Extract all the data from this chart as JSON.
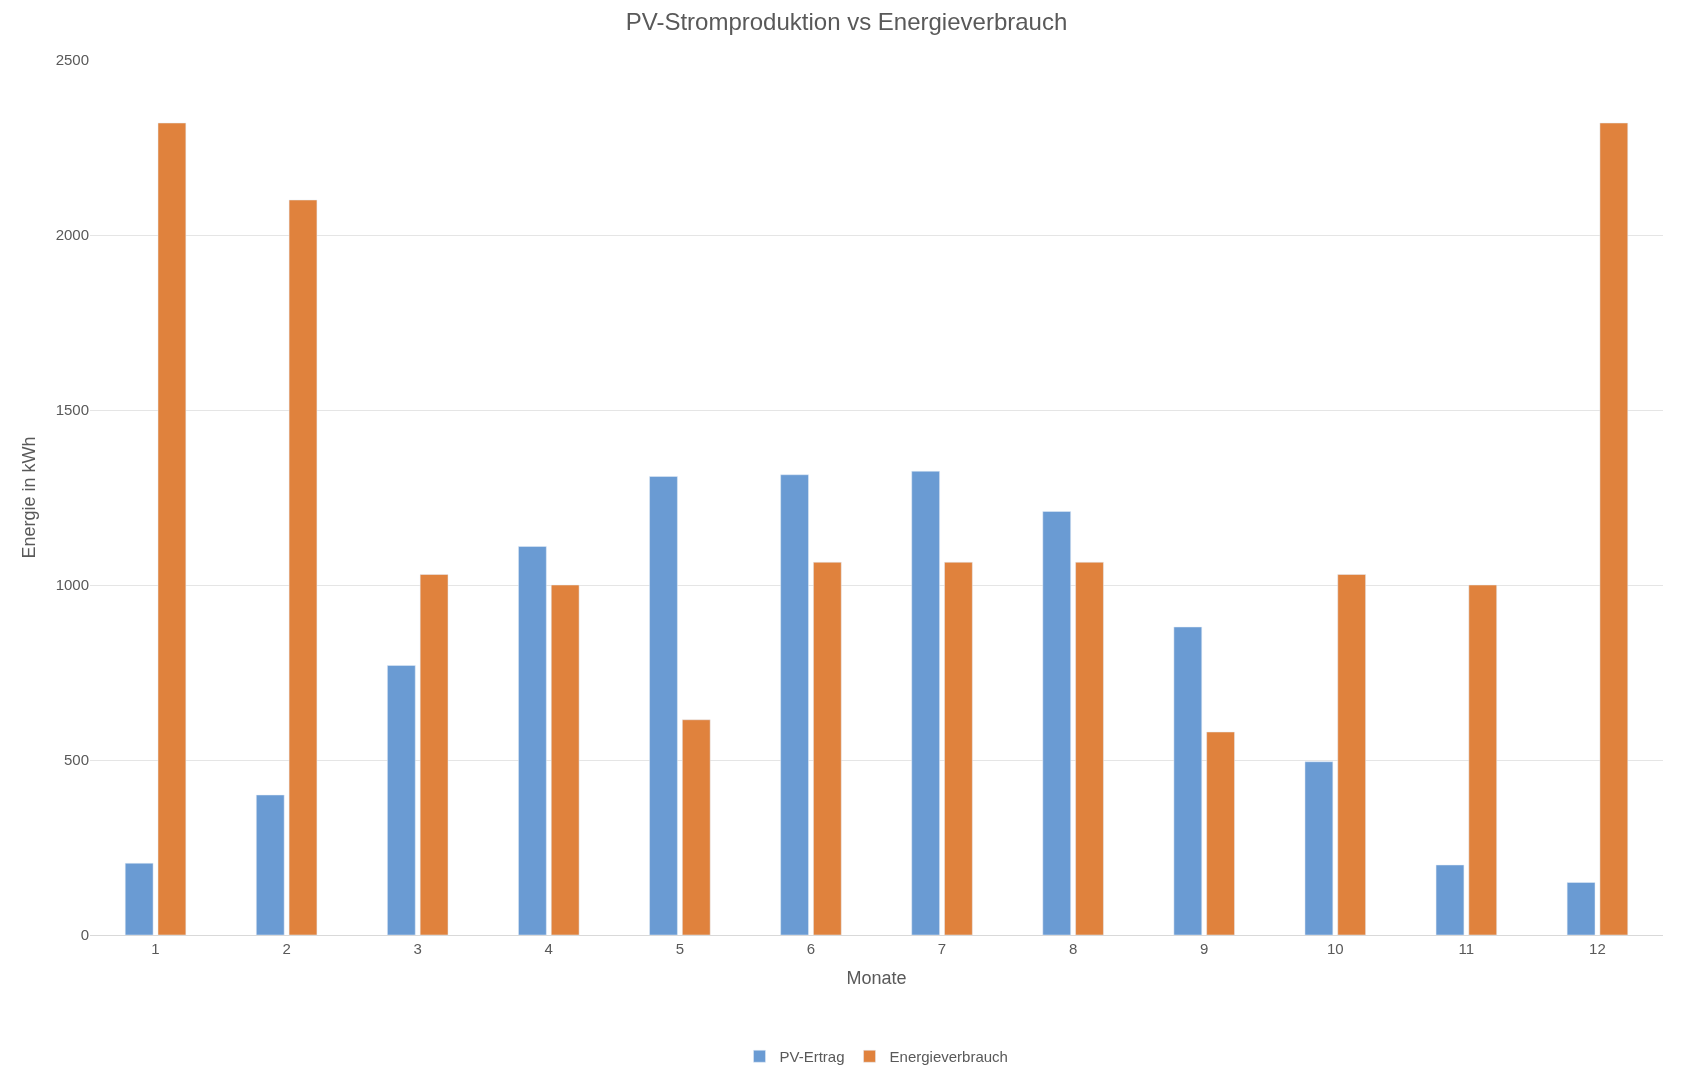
{
  "chart_data": {
    "type": "bar",
    "title": "PV-Stromproduktion vs Energieverbrauch",
    "xlabel": "Monate",
    "ylabel": "Energie in kWh",
    "categories": [
      "1",
      "2",
      "3",
      "4",
      "5",
      "6",
      "7",
      "8",
      "9",
      "10",
      "11",
      "12"
    ],
    "series": [
      {
        "name": "PV-Ertrag",
        "color": "#6a9bd3",
        "values": [
          205,
          400,
          770,
          1110,
          1310,
          1315,
          1325,
          1210,
          880,
          495,
          200,
          150
        ]
      },
      {
        "name": "Energieverbrauch",
        "color": "#e0823d",
        "values": [
          2320,
          2100,
          1030,
          1000,
          615,
          1065,
          1065,
          1065,
          580,
          1030,
          1000,
          2320
        ]
      }
    ],
    "ylim": [
      0,
      2500
    ],
    "yticks": [
      0,
      500,
      1000,
      1500,
      2000,
      2500
    ],
    "grid": "y",
    "legend": "bottom"
  }
}
